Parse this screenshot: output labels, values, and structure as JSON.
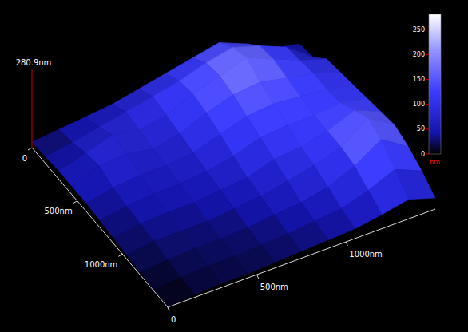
{
  "chart_data": {
    "type": "surface",
    "x": [
      0,
      150,
      300,
      450,
      600,
      750,
      900,
      1050,
      1200,
      1350,
      1500
    ],
    "y": [
      0,
      150,
      300,
      450,
      600,
      750,
      900,
      1050,
      1200,
      1350,
      1500
    ],
    "z": [
      [
        20,
        30,
        40,
        50,
        70,
        90,
        110,
        130,
        90,
        40,
        20
      ],
      [
        25,
        40,
        60,
        80,
        100,
        120,
        150,
        170,
        140,
        100,
        30
      ],
      [
        30,
        60,
        90,
        70,
        90,
        130,
        160,
        190,
        150,
        110,
        80
      ],
      [
        30,
        70,
        80,
        60,
        80,
        120,
        150,
        160,
        140,
        120,
        90
      ],
      [
        30,
        50,
        60,
        60,
        70,
        100,
        130,
        140,
        130,
        120,
        100
      ],
      [
        25,
        40,
        50,
        50,
        60,
        80,
        110,
        120,
        120,
        130,
        110
      ],
      [
        20,
        35,
        40,
        40,
        50,
        60,
        90,
        100,
        120,
        160,
        120
      ],
      [
        15,
        30,
        30,
        30,
        40,
        50,
        70,
        90,
        120,
        190,
        130
      ],
      [
        10,
        20,
        25,
        25,
        30,
        40,
        50,
        70,
        110,
        170,
        110
      ],
      [
        5,
        15,
        20,
        20,
        25,
        30,
        40,
        50,
        80,
        120,
        80
      ],
      [
        0,
        10,
        15,
        15,
        20,
        25,
        30,
        35,
        50,
        70,
        40
      ]
    ],
    "xlim": [
      0,
      1500
    ],
    "ylim": [
      0,
      1500
    ],
    "zlim": [
      0,
      280.9
    ],
    "xticks": [
      0,
      {
        "value": 500,
        "label": "500nm"
      },
      {
        "value": 1000,
        "label": "1000nm"
      }
    ],
    "yticks": [
      0,
      {
        "value": 500,
        "label": "500nm"
      },
      {
        "value": 1000,
        "label": "1000nm"
      }
    ],
    "zticks": [
      {
        "value": 280.9,
        "label": "280.9nm"
      }
    ],
    "colorbar": {
      "range": [
        0,
        280.9
      ],
      "ticks": [
        0,
        50,
        100,
        150,
        200,
        250
      ],
      "label": "nm"
    }
  }
}
